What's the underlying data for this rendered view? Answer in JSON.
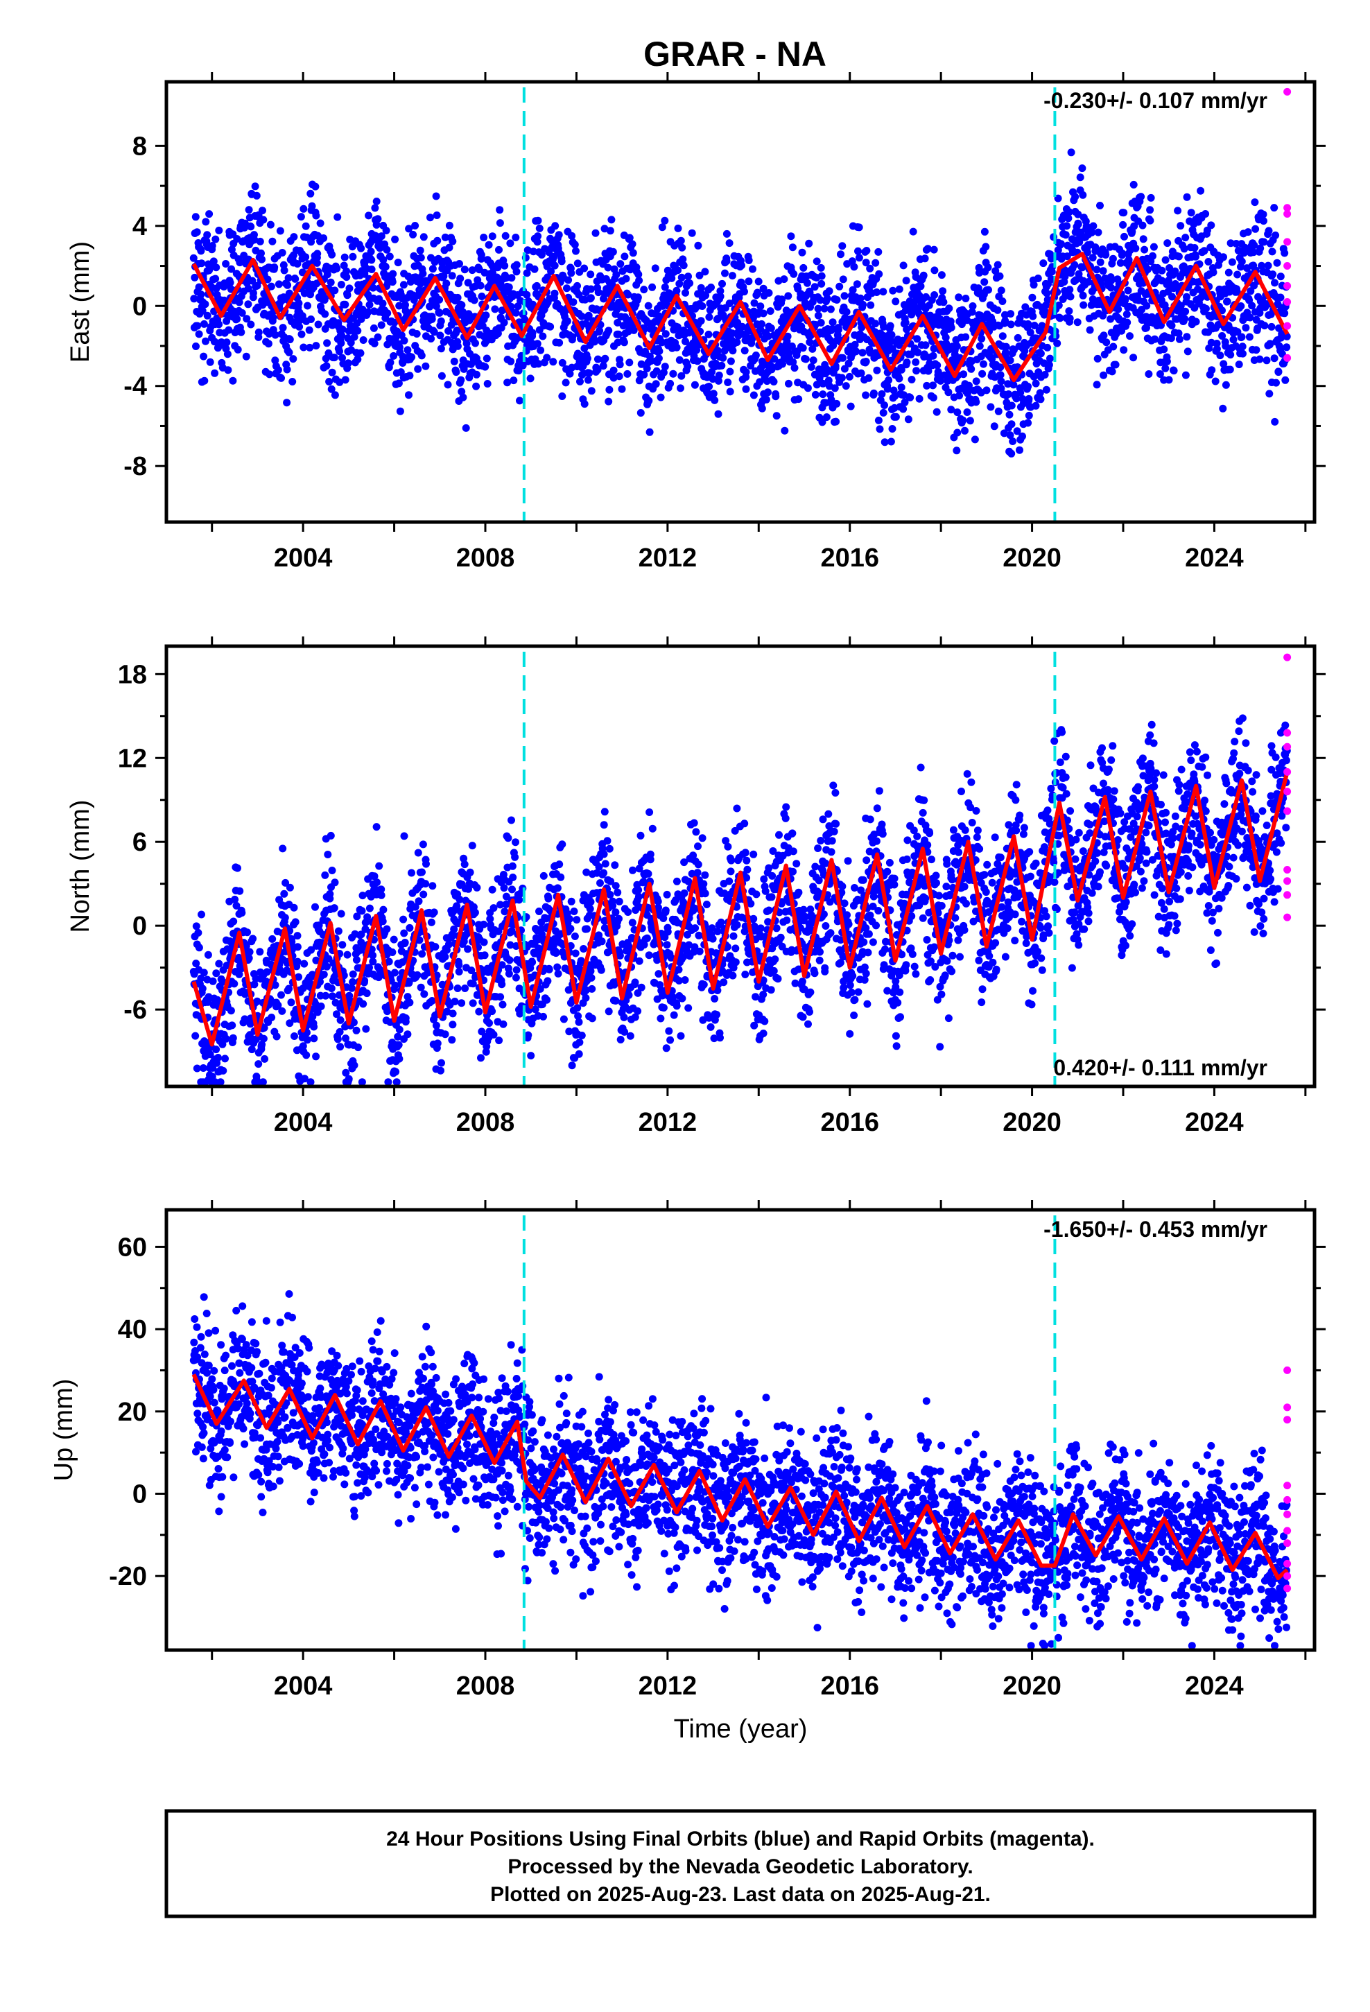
{
  "title": "GRAR - NA",
  "caption": {
    "lines": [
      "24 Hour Positions Using Final Orbits (blue) and Rapid Orbits (magenta).",
      "Processed by the Nevada Geodetic Laboratory.",
      "Plotted on 2025-Aug-23. Last data on 2025-Aug-21."
    ]
  },
  "colors": {
    "final_orbits": "#0000ff",
    "rapid_orbits": "#ff00ff",
    "model_fit": "#ff0000",
    "steps": "#00e0e0",
    "frame": "#000000"
  },
  "chart_data": [
    {
      "type": "scatter",
      "ylabel": "East (mm)",
      "xlabel": "",
      "xlim": [
        2001.0,
        2026.2
      ],
      "ylim": [
        -10.8,
        11.2
      ],
      "x_ticks": [
        2004,
        2008,
        2012,
        2016,
        2020,
        2024
      ],
      "y_ticks": [
        -8,
        -4,
        0,
        4,
        8
      ],
      "rate_text": "-0.230+/- 0.107 mm/yr",
      "rate_position": "top-right",
      "steps": [
        2008.85,
        2020.5
      ],
      "series": [
        {
          "role": "model_fit",
          "x": [
            2001.6,
            2002.2,
            2002.9,
            2003.5,
            2004.2,
            2004.9,
            2005.6,
            2006.2,
            2006.9,
            2007.6,
            2008.2,
            2008.8,
            2009.5,
            2010.2,
            2010.9,
            2011.6,
            2012.2,
            2012.9,
            2013.6,
            2014.2,
            2014.9,
            2015.6,
            2016.2,
            2016.9,
            2017.6,
            2018.3,
            2018.9,
            2019.6,
            2020.3,
            2020.6,
            2021.1,
            2021.7,
            2022.3,
            2022.9,
            2023.6,
            2024.2,
            2024.9,
            2025.6
          ],
          "values": [
            2.1,
            -0.5,
            2.3,
            -0.6,
            2.0,
            -0.7,
            1.6,
            -1.2,
            1.4,
            -1.6,
            1.0,
            -1.5,
            1.5,
            -1.8,
            1.0,
            -2.1,
            0.5,
            -2.4,
            0.2,
            -2.7,
            0.0,
            -2.9,
            -0.3,
            -3.2,
            -0.5,
            -3.5,
            -0.9,
            -3.7,
            -1.3,
            1.9,
            2.6,
            -0.3,
            2.4,
            -0.8,
            2.0,
            -0.9,
            1.7,
            -1.4
          ]
        }
      ],
      "rapid_orbits": {
        "x": [
          2025.6,
          2025.6,
          2025.6,
          2025.6,
          2025.6,
          2025.6,
          2025.6,
          2025.6,
          2025.6
        ],
        "values": [
          10.7,
          4.9,
          4.6,
          3.2,
          2.0,
          1.0,
          0.2,
          -1.0,
          -2.6
        ]
      }
    },
    {
      "type": "scatter",
      "ylabel": "North (mm)",
      "xlabel": "",
      "xlim": [
        2001.0,
        2026.2
      ],
      "ylim": [
        -11.5,
        20.0
      ],
      "x_ticks": [
        2004,
        2008,
        2012,
        2016,
        2020,
        2024
      ],
      "y_ticks": [
        -6,
        0,
        6,
        12,
        18
      ],
      "rate_text": "0.420+/- 0.111 mm/yr",
      "rate_position": "bottom-right",
      "steps": [
        2008.85,
        2020.5
      ],
      "series": [
        {
          "role": "model_fit",
          "x": [
            2001.6,
            2002.0,
            2002.6,
            2003.0,
            2003.6,
            2004.0,
            2004.6,
            2005.0,
            2005.6,
            2006.0,
            2006.6,
            2007.0,
            2007.6,
            2008.0,
            2008.6,
            2009.0,
            2009.6,
            2010.0,
            2010.6,
            2011.0,
            2011.6,
            2012.0,
            2012.6,
            2013.0,
            2013.6,
            2014.0,
            2014.6,
            2015.0,
            2015.6,
            2016.0,
            2016.6,
            2017.0,
            2017.6,
            2018.0,
            2018.6,
            2019.0,
            2019.6,
            2020.0,
            2020.6,
            2021.0,
            2021.6,
            2022.0,
            2022.6,
            2023.0,
            2023.6,
            2024.0,
            2024.6,
            2025.0,
            2025.6
          ],
          "values": [
            -4.0,
            -8.5,
            -0.5,
            -7.8,
            -0.2,
            -7.5,
            0.2,
            -7.0,
            0.7,
            -6.8,
            1.1,
            -6.5,
            1.5,
            -6.2,
            1.8,
            -5.8,
            2.2,
            -5.5,
            2.6,
            -5.2,
            3.0,
            -4.8,
            3.4,
            -4.5,
            3.8,
            -4.0,
            4.3,
            -3.6,
            4.7,
            -3.0,
            5.1,
            -2.5,
            5.5,
            -2.0,
            6.0,
            -1.5,
            6.4,
            -1.0,
            8.8,
            1.8,
            9.2,
            2.0,
            9.6,
            2.4,
            10.0,
            2.7,
            10.4,
            3.2,
            11.0
          ]
        }
      ],
      "rapid_orbits": {
        "x": [
          2025.6,
          2025.6,
          2025.6,
          2025.6,
          2025.6,
          2025.6,
          2025.6,
          2025.6,
          2025.6,
          2025.6
        ],
        "values": [
          19.2,
          13.8,
          12.8,
          11.0,
          9.6,
          8.2,
          4.0,
          3.2,
          2.2,
          0.6
        ]
      }
    },
    {
      "type": "scatter",
      "ylabel": "Up (mm)",
      "xlabel": "Time (year)",
      "xlim": [
        2001.0,
        2026.2
      ],
      "ylim": [
        -38.0,
        69.0
      ],
      "x_ticks": [
        2004,
        2008,
        2012,
        2016,
        2020,
        2024
      ],
      "y_ticks": [
        -20,
        0,
        20,
        40,
        60
      ],
      "rate_text": "-1.650+/- 0.453 mm/yr",
      "rate_position": "top-right",
      "steps": [
        2008.85,
        2020.5
      ],
      "series": [
        {
          "role": "model_fit",
          "x": [
            2001.6,
            2002.1,
            2002.7,
            2003.2,
            2003.7,
            2004.2,
            2004.7,
            2005.2,
            2005.7,
            2006.2,
            2006.7,
            2007.2,
            2007.7,
            2008.2,
            2008.7,
            2008.9,
            2009.2,
            2009.7,
            2010.2,
            2010.7,
            2011.2,
            2011.7,
            2012.2,
            2012.7,
            2013.2,
            2013.7,
            2014.2,
            2014.7,
            2015.2,
            2015.7,
            2016.2,
            2016.7,
            2017.2,
            2017.7,
            2018.2,
            2018.7,
            2019.2,
            2019.7,
            2020.2,
            2020.5,
            2020.9,
            2021.4,
            2021.9,
            2022.4,
            2022.9,
            2023.4,
            2023.9,
            2024.4,
            2024.9,
            2025.4,
            2025.6
          ],
          "values": [
            29.0,
            17.0,
            27.5,
            16.0,
            25.5,
            13.5,
            24.0,
            12.0,
            22.5,
            10.5,
            21.0,
            9.0,
            19.0,
            7.5,
            17.5,
            3.0,
            -1.0,
            9.5,
            -2.0,
            8.5,
            -3.0,
            7.0,
            -4.5,
            5.5,
            -6.5,
            3.5,
            -8.0,
            1.5,
            -10.0,
            0.5,
            -11.5,
            -1.0,
            -13.0,
            -3.0,
            -14.5,
            -5.0,
            -16.0,
            -6.5,
            -17.5,
            -17.5,
            -5.0,
            -15.0,
            -5.5,
            -16.0,
            -6.0,
            -17.0,
            -7.0,
            -18.5,
            -9.5,
            -20.5,
            -18.5
          ]
        }
      ],
      "rapid_orbits": {
        "x": [
          2025.6,
          2025.6,
          2025.6,
          2025.6,
          2025.6,
          2025.6,
          2025.6,
          2025.6,
          2025.6,
          2025.6,
          2025.6
        ],
        "values": [
          30.0,
          21.0,
          18.0,
          2.0,
          -1.5,
          -5.0,
          -9.0,
          -12.0,
          -17.0,
          -20.0,
          -23.0
        ]
      }
    }
  ]
}
